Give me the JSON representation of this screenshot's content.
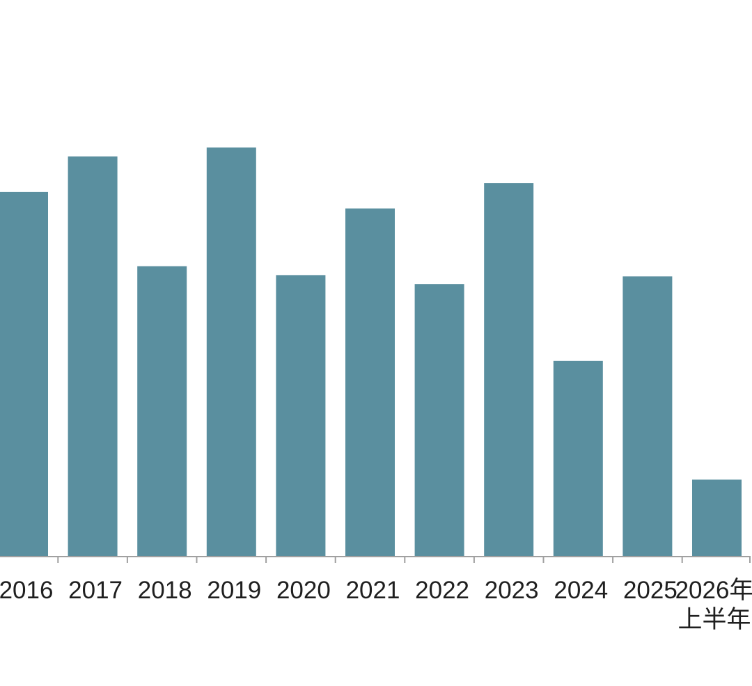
{
  "chart_data": {
    "type": "bar",
    "categories": [
      "2016",
      "2017",
      "2018",
      "2019",
      "2020",
      "2021",
      "2022",
      "2023",
      "2024",
      "2025",
      "2026年上半年"
    ],
    "category_labels": [
      [
        "2016"
      ],
      [
        "2017"
      ],
      [
        "2018"
      ],
      [
        "2019"
      ],
      [
        "2020"
      ],
      [
        "2021"
      ],
      [
        "2022"
      ],
      [
        "2023"
      ],
      [
        "2024"
      ],
      [
        "2025"
      ],
      [
        "2026年",
        "上半年"
      ]
    ],
    "values": [
      82,
      90,
      65.3,
      92,
      63.3,
      78.3,
      61.3,
      84,
      44,
      63,
      17.3
    ],
    "ylim": [
      0,
      100
    ],
    "grid": false,
    "legend": "none",
    "bar_color": "#5a8f9f",
    "axis_color": "#a0a0a0",
    "label_color": "#1f1f1f"
  }
}
